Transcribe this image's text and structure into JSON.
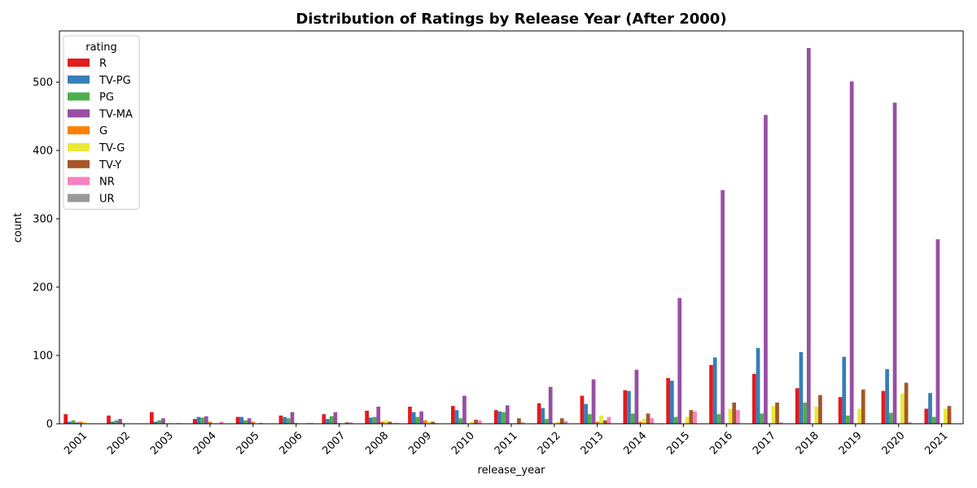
{
  "chart_data": {
    "type": "bar",
    "title": "Distribution of Ratings by Release Year (After 2000)",
    "xlabel": "release_year",
    "ylabel": "count",
    "ylim": [
      0,
      575
    ],
    "yticks": [
      0,
      100,
      200,
      300,
      400,
      500
    ],
    "legend": {
      "title": "rating",
      "placement": "top-left"
    },
    "categories": [
      "2001",
      "2002",
      "2003",
      "2004",
      "2005",
      "2006",
      "2007",
      "2008",
      "2009",
      "2010",
      "2011",
      "2012",
      "2013",
      "2014",
      "2015",
      "2016",
      "2017",
      "2018",
      "2019",
      "2020",
      "2021"
    ],
    "series": [
      {
        "name": "R",
        "color": "#e41a1c",
        "values": [
          14,
          12,
          17,
          7,
          10,
          12,
          14,
          19,
          25,
          26,
          20,
          30,
          41,
          49,
          67,
          86,
          73,
          52,
          39,
          48,
          22
        ]
      },
      {
        "name": "TV-PG",
        "color": "#377eb8",
        "values": [
          3,
          3,
          3,
          10,
          10,
          10,
          7,
          9,
          17,
          20,
          18,
          23,
          29,
          48,
          63,
          97,
          111,
          105,
          98,
          80,
          45
        ]
      },
      {
        "name": "PG",
        "color": "#4daf4a",
        "values": [
          5,
          5,
          5,
          9,
          5,
          8,
          11,
          10,
          10,
          8,
          17,
          7,
          14,
          15,
          10,
          14,
          15,
          31,
          12,
          16,
          10
        ]
      },
      {
        "name": "TV-MA",
        "color": "#984ea3",
        "values": [
          2,
          7,
          8,
          11,
          8,
          17,
          17,
          25,
          18,
          41,
          27,
          54,
          65,
          79,
          184,
          342,
          452,
          550,
          501,
          470,
          270
        ]
      },
      {
        "name": "G",
        "color": "#ff7f00",
        "values": [
          3,
          0,
          0,
          3,
          3,
          1,
          1,
          3,
          5,
          0,
          0,
          0,
          3,
          3,
          0,
          0,
          0,
          0,
          0,
          0,
          0
        ]
      },
      {
        "name": "TV-G",
        "color": "#e8e83a",
        "values": [
          2,
          0,
          1,
          1,
          0,
          0,
          0,
          5,
          3,
          3,
          1,
          3,
          12,
          7,
          10,
          22,
          26,
          25,
          22,
          44,
          22
        ]
      },
      {
        "name": "TV-Y",
        "color": "#a65628",
        "values": [
          0,
          0,
          0,
          0,
          1,
          0,
          2,
          3,
          3,
          6,
          8,
          8,
          5,
          15,
          20,
          31,
          31,
          42,
          50,
          60,
          26
        ]
      },
      {
        "name": "NR",
        "color": "#f781bf",
        "values": [
          0,
          0,
          1,
          3,
          0,
          1,
          2,
          1,
          1,
          5,
          2,
          4,
          10,
          8,
          18,
          20,
          2,
          0,
          0,
          2,
          0
        ]
      },
      {
        "name": "UR",
        "color": "#999999",
        "values": [
          0,
          0,
          0,
          0,
          0,
          1,
          0,
          1,
          0,
          0,
          0,
          0,
          0,
          0,
          0,
          0,
          0,
          0,
          0,
          0,
          0
        ]
      }
    ]
  }
}
